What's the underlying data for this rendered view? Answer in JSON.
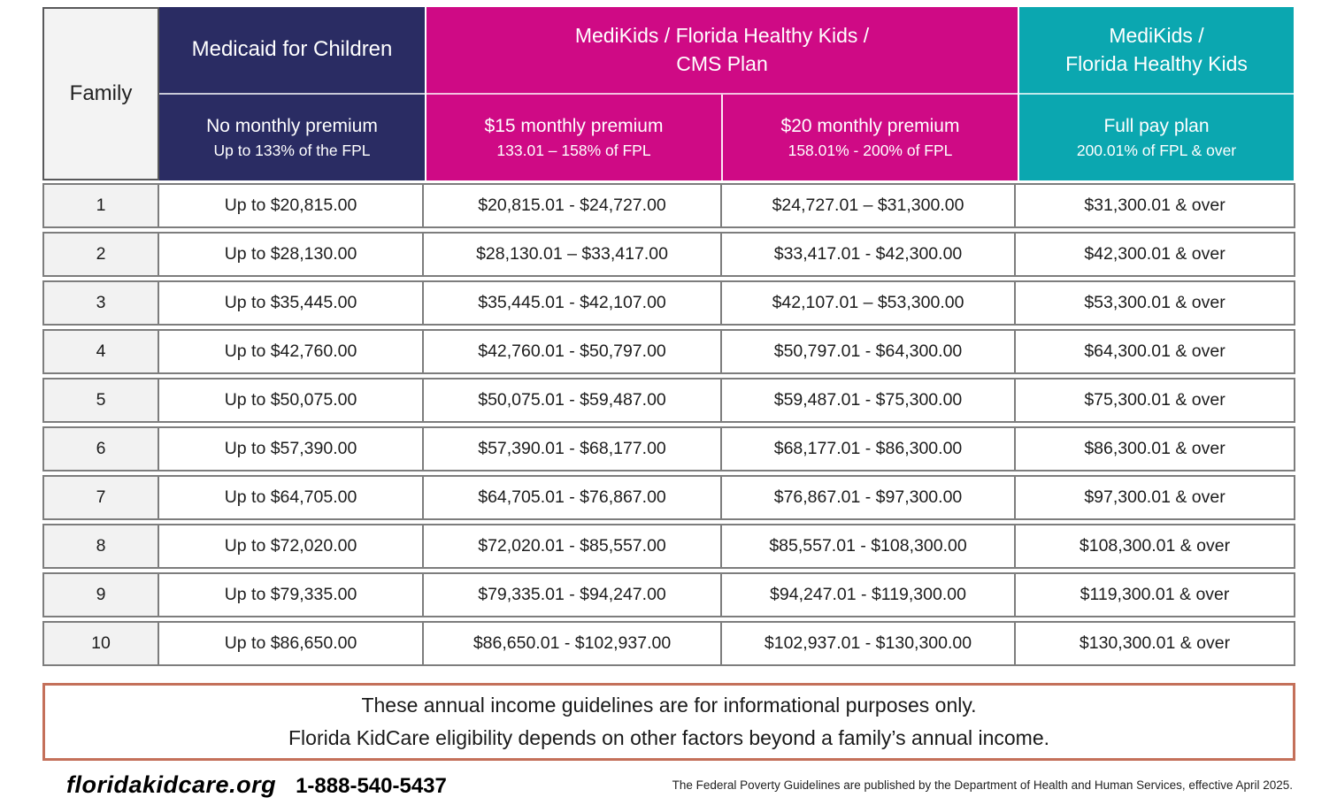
{
  "header": {
    "family_label": "Family",
    "medicaid": {
      "title": "Medicaid for Children",
      "sub1": "No monthly premium",
      "sub2": "Up to 133% of the FPL"
    },
    "medikids_cms": {
      "title_line1": "MediKids / Florida Healthy Kids /",
      "title_line2": "CMS Plan",
      "plan15": {
        "sub1": "$15 monthly premium",
        "sub2": "133.01 – 158% of FPL"
      },
      "plan20": {
        "sub1": "$20 monthly premium",
        "sub2": "158.01% - 200% of FPL"
      }
    },
    "fullpay": {
      "title_line1": "MediKids /",
      "title_line2": "Florida Healthy Kids",
      "sub1": "Full pay plan",
      "sub2": "200.01% of FPL & over"
    }
  },
  "table": {
    "rows": [
      {
        "family": "1",
        "medicaid": "Up to $20,815.00",
        "premium15": "$20,815.01 - $24,727.00",
        "premium20": "$24,727.01 – $31,300.00",
        "fullpay": "$31,300.01 & over"
      },
      {
        "family": "2",
        "medicaid": "Up to $28,130.00",
        "premium15": "$28,130.01 – $33,417.00",
        "premium20": "$33,417.01 - $42,300.00",
        "fullpay": "$42,300.01 & over"
      },
      {
        "family": "3",
        "medicaid": "Up to $35,445.00",
        "premium15": "$35,445.01 - $42,107.00",
        "premium20": "$42,107.01 – $53,300.00",
        "fullpay": "$53,300.01 & over"
      },
      {
        "family": "4",
        "medicaid": "Up to $42,760.00",
        "premium15": "$42,760.01 - $50,797.00",
        "premium20": "$50,797.01 - $64,300.00",
        "fullpay": "$64,300.01 & over"
      },
      {
        "family": "5",
        "medicaid": "Up to $50,075.00",
        "premium15": "$50,075.01 - $59,487.00",
        "premium20": "$59,487.01 - $75,300.00",
        "fullpay": "$75,300.01 & over"
      },
      {
        "family": "6",
        "medicaid": "Up to $57,390.00",
        "premium15": "$57,390.01 - $68,177.00",
        "premium20": "$68,177.01 - $86,300.00",
        "fullpay": "$86,300.01 & over"
      },
      {
        "family": "7",
        "medicaid": "Up to $64,705.00",
        "premium15": "$64,705.01 - $76,867.00",
        "premium20": "$76,867.01 - $97,300.00",
        "fullpay": "$97,300.01 & over"
      },
      {
        "family": "8",
        "medicaid": "Up to $72,020.00",
        "premium15": "$72,020.01 - $85,557.00",
        "premium20": "$85,557.01 - $108,300.00",
        "fullpay": "$108,300.01 & over"
      },
      {
        "family": "9",
        "medicaid": "Up to $79,335.00",
        "premium15": "$79,335.01 - $94,247.00",
        "premium20": "$94,247.01 - $119,300.00",
        "fullpay": "$119,300.01 & over"
      },
      {
        "family": "10",
        "medicaid": "Up to $86,650.00",
        "premium15": "$86,650.01 - $102,937.00",
        "premium20": "$102,937.01 - $130,300.00",
        "fullpay": "$130,300.01 & over"
      }
    ]
  },
  "note": {
    "line1": "These annual income guidelines are for informational purposes only.",
    "line2": "Florida KidCare eligibility depends on other factors beyond a family’s annual income."
  },
  "footer": {
    "website": "floridakidcare.org",
    "phone": "1-888-540-5437",
    "fine_print": "The Federal Poverty Guidelines are published by the Department of Health and Human Services, effective April 2025."
  },
  "colors": {
    "navy": "#2a2c63",
    "magenta": "#cf0a85",
    "teal": "#0ba7b0",
    "family_column_bg": "#f2f2f2",
    "row_border": "#7d7d7d",
    "note_border": "#c4705a"
  }
}
